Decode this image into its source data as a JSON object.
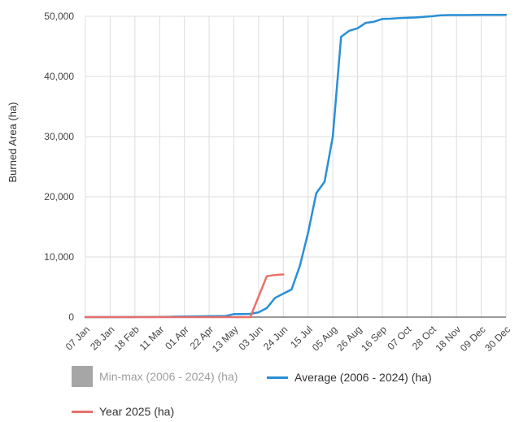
{
  "chart_data": {
    "type": "line",
    "title": "",
    "xlabel": "",
    "ylabel": "Burned Area (ha)",
    "ylim": [
      0,
      50000
    ],
    "yticks": [
      0,
      10000,
      20000,
      30000,
      40000,
      50000
    ],
    "ytick_labels": [
      "0",
      "10,000",
      "20,000",
      "30,000",
      "40,000",
      "50,000"
    ],
    "xlim": [
      0,
      51
    ],
    "xticks": [
      0,
      3,
      6,
      9,
      12,
      15,
      18,
      21,
      24,
      27,
      30,
      33,
      36,
      39,
      42,
      45,
      48,
      51
    ],
    "xtick_labels": [
      "07 Jan",
      "28 Jan",
      "18 Feb",
      "11 Mar",
      "01 Apr",
      "22 Apr",
      "13 May",
      "03 Jun",
      "24 Jun",
      "15 Jul",
      "05 Aug",
      "26 Aug",
      "16 Sep",
      "07 Oct",
      "28 Oct",
      "18 Nov",
      "09 Dec",
      "30 Dec"
    ],
    "grid": true,
    "colors": {
      "average": "#2a8fd6",
      "year": "#e8706a",
      "minmax": "#a6a6a6",
      "grid": "#dddddd",
      "baseline": "#333333"
    },
    "series": [
      {
        "name": "Average (2006 - 2024) (ha)",
        "x": [
          0,
          3,
          6,
          9,
          10,
          11,
          12,
          13,
          14,
          15,
          16,
          17,
          18,
          19,
          20,
          21,
          22,
          23,
          24,
          25,
          26,
          27,
          28,
          29,
          30,
          31,
          32,
          33,
          34,
          35,
          36,
          37,
          38,
          39,
          40,
          41,
          42,
          43,
          44,
          45,
          46,
          47,
          48,
          49,
          50,
          51
        ],
        "y": [
          0,
          0,
          20,
          40,
          60,
          80,
          100,
          120,
          140,
          150,
          160,
          170,
          500,
          520,
          540,
          800,
          1500,
          3200,
          3900,
          4600,
          8500,
          14000,
          20600,
          22500,
          30000,
          46600,
          47600,
          48000,
          48900,
          49100,
          49550,
          49600,
          49700,
          49750,
          49800,
          49900,
          50000,
          50150,
          50200,
          50200,
          50200,
          50220,
          50230,
          50230,
          50240,
          50250
        ]
      },
      {
        "name": "Year 2025 (ha)",
        "x": [
          0,
          3,
          6,
          9,
          12,
          15,
          18,
          20,
          22,
          23,
          24
        ],
        "y": [
          0,
          0,
          0,
          0,
          0,
          0,
          0,
          0,
          6800,
          7000,
          7100
        ]
      }
    ],
    "legend": [
      {
        "label": "Min-max (2006 - 2024) (ha)",
        "style": "box",
        "muted": true
      },
      {
        "label": "Average (2006 - 2024) (ha)",
        "style": "line"
      },
      {
        "label": "Year 2025 (ha)",
        "style": "line"
      }
    ]
  }
}
